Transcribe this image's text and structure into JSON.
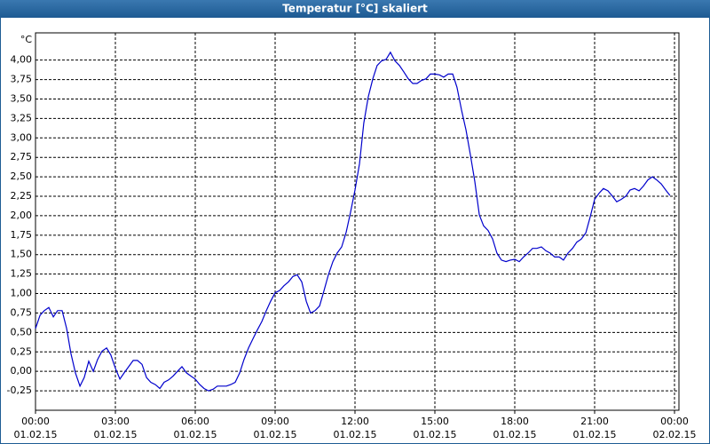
{
  "chart_data": {
    "type": "line",
    "title": "Temperatur [°C] skaliert",
    "y_unit": "°C",
    "color": "#0000cc",
    "grid": true,
    "xlim": [
      0,
      24
    ],
    "ylim": [
      -0.5,
      4.35
    ],
    "xticks": [
      {
        "value": 0,
        "label": "00:00"
      },
      {
        "value": 3,
        "label": "03:00"
      },
      {
        "value": 6,
        "label": "06:00"
      },
      {
        "value": 9,
        "label": "09:00"
      },
      {
        "value": 12,
        "label": "12:00"
      },
      {
        "value": 15,
        "label": "15:00"
      },
      {
        "value": 18,
        "label": "18:00"
      },
      {
        "value": 21,
        "label": "21:00"
      },
      {
        "value": 24,
        "label": "00:00"
      }
    ],
    "xtick_dates": [
      "01.02.15",
      "01.02.15",
      "01.02.15",
      "01.02.15",
      "01.02.15",
      "01.02.15",
      "01.02.15",
      "01.02.15",
      "02.02.15"
    ],
    "yticks": [
      {
        "value": -0.25,
        "label": "-0,25"
      },
      {
        "value": 0,
        "label": "0,00"
      },
      {
        "value": 0.25,
        "label": "0,25"
      },
      {
        "value": 0.5,
        "label": "0,50"
      },
      {
        "value": 0.75,
        "label": "0,75"
      },
      {
        "value": 1,
        "label": "1,00"
      },
      {
        "value": 1.25,
        "label": "1,25"
      },
      {
        "value": 1.5,
        "label": "1,50"
      },
      {
        "value": 1.75,
        "label": "1,75"
      },
      {
        "value": 2,
        "label": "2,00"
      },
      {
        "value": 2.25,
        "label": "2,25"
      },
      {
        "value": 2.5,
        "label": "2,50"
      },
      {
        "value": 2.75,
        "label": "2,75"
      },
      {
        "value": 3,
        "label": "3,00"
      },
      {
        "value": 3.25,
        "label": "3,25"
      },
      {
        "value": 3.5,
        "label": "3,50"
      },
      {
        "value": 3.75,
        "label": "3,75"
      },
      {
        "value": 4,
        "label": "4,00"
      }
    ],
    "x": [
      0,
      0.17,
      0.33,
      0.5,
      0.67,
      0.83,
      1,
      1.17,
      1.33,
      1.5,
      1.67,
      1.83,
      2,
      2.17,
      2.33,
      2.5,
      2.67,
      2.83,
      3,
      3.17,
      3.33,
      3.5,
      3.67,
      3.83,
      4,
      4.17,
      4.33,
      4.5,
      4.67,
      4.83,
      5,
      5.17,
      5.33,
      5.5,
      5.67,
      5.83,
      6,
      6.17,
      6.33,
      6.5,
      6.67,
      6.83,
      7,
      7.17,
      7.33,
      7.5,
      7.67,
      7.83,
      8,
      8.17,
      8.33,
      8.5,
      8.67,
      8.83,
      9,
      9.17,
      9.33,
      9.5,
      9.67,
      9.83,
      10,
      10.17,
      10.33,
      10.5,
      10.67,
      10.83,
      11,
      11.17,
      11.33,
      11.5,
      11.67,
      11.83,
      12,
      12.17,
      12.33,
      12.5,
      12.67,
      12.83,
      13,
      13.17,
      13.33,
      13.5,
      13.67,
      13.83,
      14,
      14.17,
      14.33,
      14.5,
      14.67,
      14.83,
      15,
      15.17,
      15.33,
      15.5,
      15.67,
      15.83,
      16,
      16.17,
      16.33,
      16.5,
      16.67,
      16.83,
      17,
      17.17,
      17.33,
      17.5,
      17.67,
      17.83,
      18,
      18.17,
      18.33,
      18.5,
      18.67,
      18.83,
      19,
      19.17,
      19.33,
      19.5,
      19.67,
      19.83,
      20,
      20.17,
      20.33,
      20.5,
      20.67,
      20.83,
      21,
      21.17,
      21.33,
      21.5,
      21.67,
      21.83,
      22,
      22.17,
      22.33,
      22.5,
      22.67,
      22.83,
      23,
      23.17,
      23.33,
      23.5,
      23.67,
      23.83
    ],
    "values": [
      0.55,
      0.72,
      0.78,
      0.82,
      0.7,
      0.78,
      0.78,
      0.55,
      0.23,
      -0.02,
      -0.19,
      -0.08,
      0.13,
      0,
      0.15,
      0.26,
      0.3,
      0.21,
      0.04,
      -0.1,
      -0.02,
      0.06,
      0.14,
      0.14,
      0.09,
      -0.08,
      -0.14,
      -0.17,
      -0.22,
      -0.14,
      -0.11,
      -0.06,
      0.0,
      0.06,
      -0.02,
      -0.06,
      -0.1,
      -0.17,
      -0.22,
      -0.25,
      -0.23,
      -0.19,
      -0.19,
      -0.19,
      -0.17,
      -0.14,
      -0.02,
      0.15,
      0.3,
      0.42,
      0.53,
      0.64,
      0.78,
      0.9,
      1.01,
      1.04,
      1.1,
      1.15,
      1.22,
      1.24,
      1.15,
      0.9,
      0.75,
      0.78,
      0.84,
      1.03,
      1.24,
      1.41,
      1.52,
      1.6,
      1.79,
      2.04,
      2.33,
      2.67,
      3.19,
      3.53,
      3.76,
      3.93,
      3.99,
      4.01,
      4.1,
      3.99,
      3.93,
      3.85,
      3.76,
      3.7,
      3.7,
      3.74,
      3.76,
      3.82,
      3.82,
      3.81,
      3.78,
      3.82,
      3.82,
      3.65,
      3.36,
      3.1,
      2.79,
      2.44,
      2.01,
      1.87,
      1.81,
      1.7,
      1.52,
      1.43,
      1.41,
      1.43,
      1.44,
      1.41,
      1.47,
      1.52,
      1.58,
      1.58,
      1.6,
      1.55,
      1.52,
      1.47,
      1.47,
      1.43,
      1.52,
      1.58,
      1.66,
      1.7,
      1.78,
      1.98,
      2.21,
      2.29,
      2.35,
      2.32,
      2.25,
      2.18,
      2.21,
      2.25,
      2.33,
      2.35,
      2.32,
      2.38,
      2.46,
      2.5,
      2.46,
      2.41,
      2.33,
      2.26
    ]
  }
}
